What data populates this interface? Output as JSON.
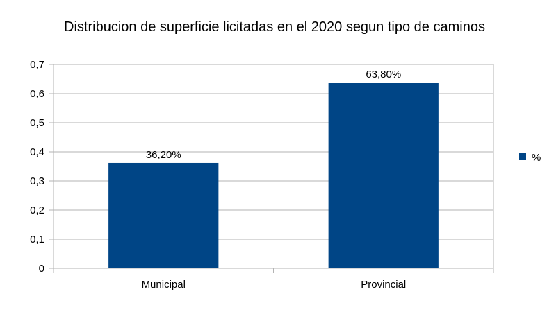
{
  "chart_data": {
    "type": "bar",
    "title": "Distribucion de superficie licitadas en el 2020 segun tipo de caminos",
    "xlabel": "",
    "ylabel": "",
    "categories": [
      "Municipal",
      "Provincial"
    ],
    "series": [
      {
        "name": "%",
        "values": [
          0.362,
          0.638
        ],
        "labels": [
          "36,20%",
          "63,80%"
        ],
        "color": "#004586"
      }
    ],
    "ylim": [
      0,
      0.7
    ],
    "yticks": [
      "0",
      "0,1",
      "0,2",
      "0,3",
      "0,4",
      "0,5",
      "0,6",
      "0,7"
    ],
    "grid": true,
    "legend": "right",
    "grid_color": "#b3b3b3"
  }
}
